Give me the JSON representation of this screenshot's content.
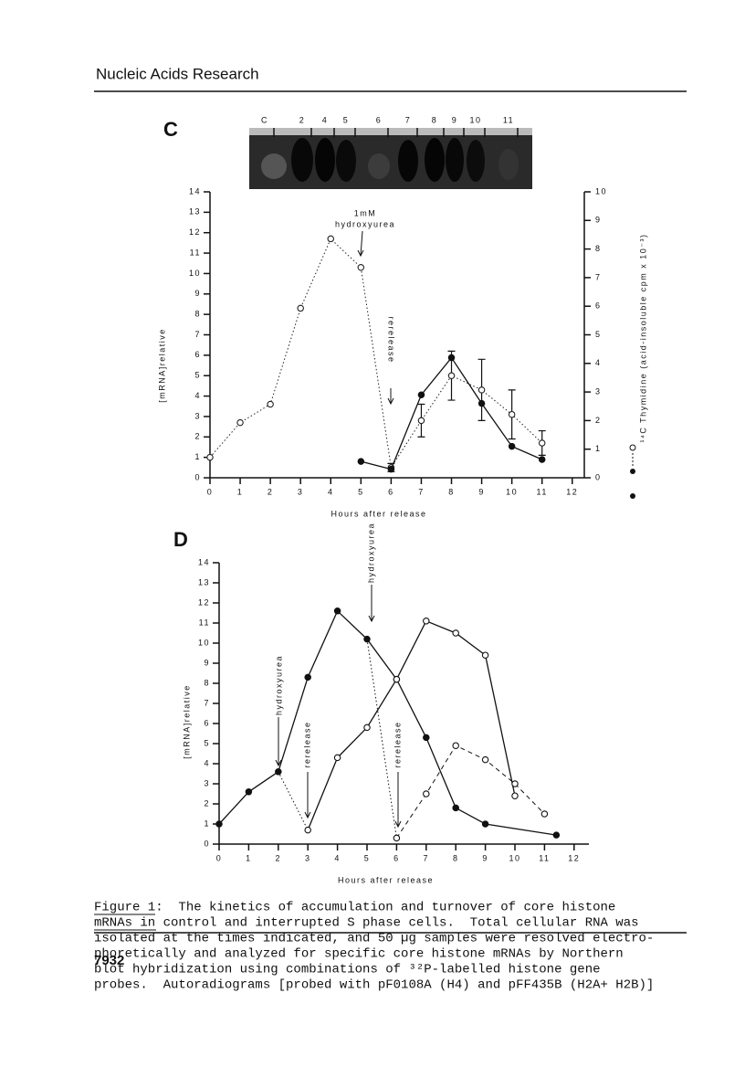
{
  "header": {
    "journal": "Nucleic Acids Research"
  },
  "chart_data": [
    {
      "type": "line",
      "panel": "C",
      "lanes": [
        "C",
        "2",
        "4",
        "5",
        "6",
        "7",
        "8",
        "9",
        "10",
        "11"
      ],
      "x_label": "Hours after release",
      "y_label": "[mRNA]relative",
      "y2_label": "¹⁴C Thymidine (acid-insoluble cpm x 10⁻³)",
      "annotations": [
        "1mM",
        "hydroxyurea",
        "rerelease"
      ],
      "xlim": [
        0,
        12.4
      ],
      "xticks": [
        0,
        1,
        2,
        3,
        4,
        5,
        6,
        7,
        8,
        9,
        10,
        11,
        12
      ],
      "ylim": [
        0,
        14
      ],
      "yticks": [
        0,
        1,
        2,
        3,
        4,
        5,
        6,
        7,
        8,
        9,
        10,
        11,
        12,
        13,
        14
      ],
      "y2lim": [
        0,
        10
      ],
      "y2ticks": [
        0,
        1,
        2,
        3,
        4,
        5,
        6,
        7,
        8,
        9,
        10
      ],
      "series": [
        {
          "x": [
            0,
            1,
            2,
            3,
            4,
            5,
            6,
            7,
            8,
            9,
            10,
            11
          ],
          "values": [
            1.0,
            2.7,
            3.6,
            8.3,
            11.7,
            10.3,
            0.5,
            2.8,
            5.0,
            4.3,
            3.1,
            1.7
          ],
          "errors": [
            null,
            null,
            null,
            null,
            null,
            null,
            0.2,
            0.8,
            1.2,
            1.5,
            1.2,
            0.6
          ],
          "marker": "open",
          "line_style": "dotted",
          "color": "#222222"
        },
        {
          "x": [
            5,
            6,
            7,
            8,
            9,
            10,
            11
          ],
          "values": [
            0.57,
            0.3,
            2.9,
            4.2,
            2.6,
            1.1,
            0.64
          ],
          "axis": "y2",
          "marker": "filled",
          "line_style": "solid",
          "color": "#111111"
        }
      ]
    },
    {
      "type": "line",
      "panel": "D",
      "x_label": "Hours after release",
      "y_label": "[mRNA]relative",
      "annotations": [
        "hydroxyurea",
        "hydroxyurea",
        "rerelease",
        "rerelease"
      ],
      "xlim": [
        0,
        12.5
      ],
      "xticks": [
        0,
        1,
        2,
        3,
        4,
        5,
        6,
        7,
        8,
        9,
        10,
        11,
        12
      ],
      "ylim": [
        0,
        14
      ],
      "yticks": [
        0,
        1,
        2,
        3,
        4,
        5,
        6,
        7,
        8,
        9,
        10,
        11,
        12,
        13,
        14
      ],
      "series": [
        {
          "x": [
            0,
            1,
            2,
            3,
            4,
            5,
            6,
            7,
            8,
            9,
            11.4
          ],
          "values": [
            1.0,
            2.6,
            3.6,
            8.3,
            11.6,
            10.2,
            8.2,
            5.3,
            1.8,
            1.0,
            0.45
          ],
          "marker": "filled",
          "line_style": "solid",
          "color": "#111111"
        },
        {
          "x": [
            3,
            4,
            5,
            6,
            7,
            8,
            9,
            10
          ],
          "values": [
            0.7,
            4.3,
            5.8,
            8.2,
            11.1,
            10.5,
            9.4,
            2.4
          ],
          "marker": "open",
          "line_style": "solid",
          "color": "#111111"
        },
        {
          "x": [
            6,
            7,
            8,
            9,
            10,
            11
          ],
          "values": [
            0.3,
            2.5,
            4.9,
            4.2,
            3.0,
            1.5
          ],
          "marker": "open",
          "line_style": "dashed",
          "color": "#111111"
        }
      ]
    }
  ],
  "caption": {
    "lines": [
      "Figure 1:  The kinetics of accumulation and turnover of core histone",
      "mRNAs in control and interrupted S phase cells.  Total cellular RNA was",
      "isolated at the times indicated, and 50 µg samples were resolved electro-",
      "phoretically and analyzed for specific core histone mRNAs by Northern",
      "blot hybridization using combinations of ³²P-labelled histone gene",
      "probes.  Autoradiograms [probed with pF0108A (H4) and pFF435B (H2A+ H2B)]"
    ]
  },
  "footer": {
    "page": "7932"
  }
}
